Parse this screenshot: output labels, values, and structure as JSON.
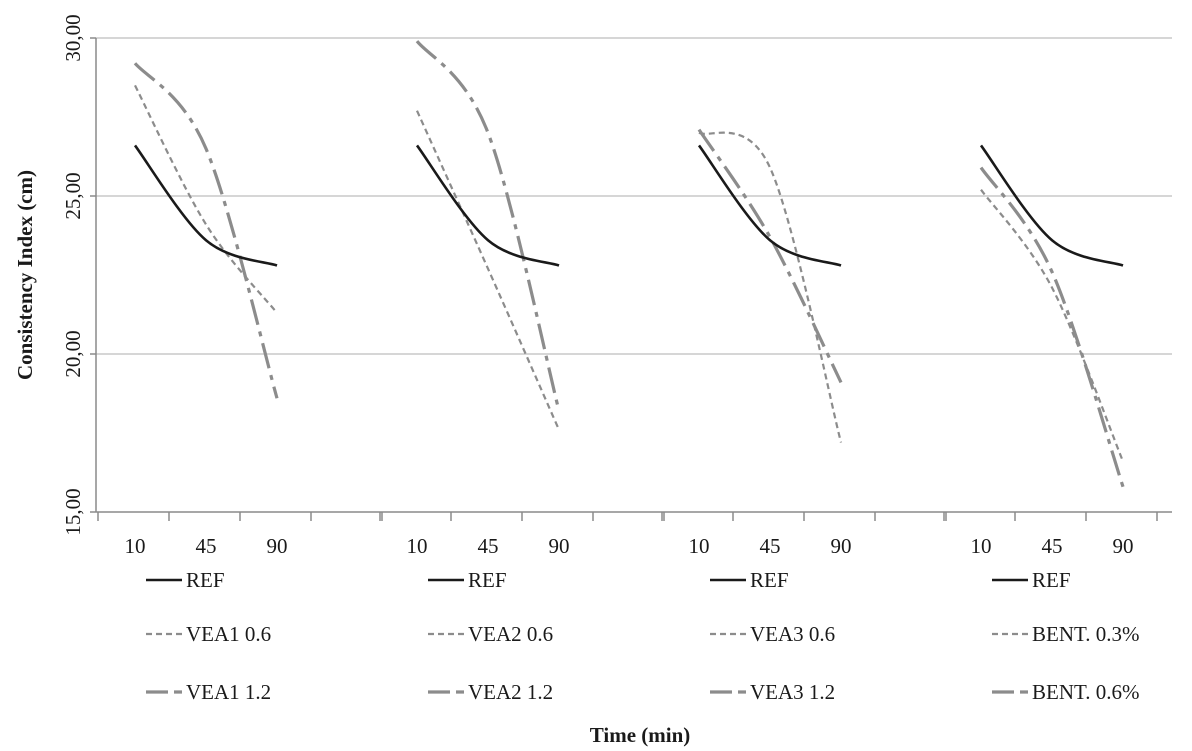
{
  "chart_data": {
    "type": "line",
    "title": "",
    "xlabel": "Time (min)",
    "ylabel": "Consistency  Index (cm)",
    "ylim": [
      15,
      30
    ],
    "y_ticks": [
      "15,00",
      "20,00",
      "25,00",
      "30,00"
    ],
    "grid": true,
    "legend_position": "bottom",
    "style_colors": {
      "ref": "#1a1a1a",
      "mix": "#8c8c8c",
      "grid": "#c8c8c8",
      "axis": "#8a8a8a"
    },
    "groups": [
      {
        "categories": [
          "10",
          "45",
          "90"
        ],
        "series": [
          {
            "name": "REF",
            "style": "solid",
            "values": [
              26.6,
              23.6,
              22.8
            ]
          },
          {
            "name": "VEA1 0.6",
            "style": "dashed",
            "values": [
              28.5,
              24.1,
              21.3
            ]
          },
          {
            "name": "VEA1 1.2",
            "style": "dashdot",
            "values": [
              29.2,
              26.5,
              18.6
            ]
          }
        ]
      },
      {
        "categories": [
          "10",
          "45",
          "90"
        ],
        "series": [
          {
            "name": "REF",
            "style": "solid",
            "values": [
              26.6,
              23.6,
              22.8
            ]
          },
          {
            "name": "VEA2 0.6",
            "style": "dashed",
            "values": [
              27.7,
              22.7,
              17.6
            ]
          },
          {
            "name": "VEA2 1.2",
            "style": "dashdot",
            "values": [
              29.9,
              27.0,
              18.2
            ]
          }
        ]
      },
      {
        "categories": [
          "10",
          "45",
          "90"
        ],
        "series": [
          {
            "name": "REF",
            "style": "solid",
            "values": [
              26.6,
              23.6,
              22.8
            ]
          },
          {
            "name": "VEA3 0.6",
            "style": "dashed",
            "values": [
              27.0,
              25.9,
              17.2
            ]
          },
          {
            "name": "VEA3 1.2",
            "style": "dashdot",
            "values": [
              27.1,
              23.7,
              19.1
            ]
          }
        ]
      },
      {
        "categories": [
          "10",
          "45",
          "90"
        ],
        "series": [
          {
            "name": "REF",
            "style": "solid",
            "values": [
              26.6,
              23.6,
              22.8
            ]
          },
          {
            "name": "BENT. 0.3%",
            "style": "dashed",
            "values": [
              25.2,
              22.1,
              16.6
            ]
          },
          {
            "name": "BENT. 0.6%",
            "style": "dashdot",
            "values": [
              25.9,
              22.6,
              15.8
            ]
          }
        ]
      }
    ]
  }
}
